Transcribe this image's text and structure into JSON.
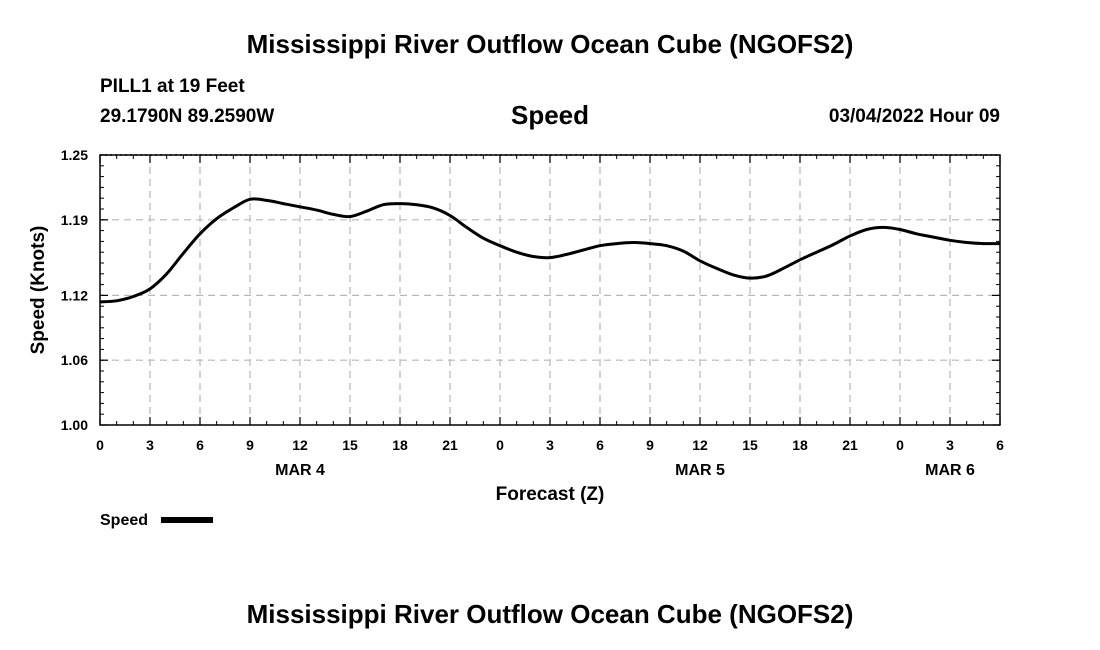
{
  "header": {
    "title": "Mississippi River Outflow Ocean Cube (NGOFS2)",
    "station": "PILL1 at 19 Feet",
    "coords": "29.1790N  89.2590W",
    "plot_title": "Speed",
    "timestamp": "03/04/2022 Hour 09"
  },
  "footer": {
    "title": "Mississippi River Outflow Ocean Cube (NGOFS2)"
  },
  "chart_data": {
    "type": "line",
    "title": "Speed",
    "xlabel": "Forecast (Z)",
    "ylabel": "Speed (Knots)",
    "xlim": [
      0,
      54
    ],
    "ylim": [
      1.0,
      1.25
    ],
    "yticks": [
      1.0,
      1.06,
      1.12,
      1.19,
      1.25
    ],
    "ytick_labels": [
      "1.00",
      "1.06",
      "1.12",
      "1.19",
      "1.25"
    ],
    "xticks": [
      0,
      3,
      6,
      9,
      12,
      15,
      18,
      21,
      24,
      27,
      30,
      33,
      36,
      39,
      42,
      45,
      48,
      51,
      54
    ],
    "xtick_labels": [
      "0",
      "3",
      "6",
      "9",
      "12",
      "15",
      "18",
      "21",
      "0",
      "3",
      "6",
      "9",
      "12",
      "15",
      "18",
      "21",
      "0",
      "3",
      "6"
    ],
    "date_labels": [
      {
        "label": "MAR 4",
        "at": 12
      },
      {
        "label": "MAR 5",
        "at": 36
      },
      {
        "label": "MAR 6",
        "at": 51
      }
    ],
    "grid": true,
    "legend": "bottom-left",
    "series": [
      {
        "name": "Speed",
        "color": "#000000",
        "x": [
          0,
          1,
          2,
          3,
          4,
          5,
          6,
          7,
          8,
          9,
          10,
          11,
          12,
          13,
          14,
          15,
          16,
          17,
          18,
          19,
          20,
          21,
          22,
          23,
          24,
          25,
          26,
          27,
          28,
          29,
          30,
          31,
          32,
          33,
          34,
          35,
          36,
          37,
          38,
          39,
          40,
          41,
          42,
          43,
          44,
          45,
          46,
          47,
          48,
          49,
          50,
          51,
          52,
          53,
          54
        ],
        "values": [
          1.114,
          1.115,
          1.119,
          1.126,
          1.14,
          1.159,
          1.177,
          1.191,
          1.201,
          1.209,
          1.208,
          1.205,
          1.202,
          1.199,
          1.195,
          1.193,
          1.198,
          1.204,
          1.205,
          1.204,
          1.201,
          1.194,
          1.183,
          1.173,
          1.166,
          1.16,
          1.156,
          1.155,
          1.158,
          1.162,
          1.166,
          1.168,
          1.169,
          1.168,
          1.166,
          1.161,
          1.152,
          1.145,
          1.139,
          1.136,
          1.138,
          1.145,
          1.153,
          1.16,
          1.167,
          1.175,
          1.181,
          1.183,
          1.181,
          1.177,
          1.174,
          1.171,
          1.169,
          1.168,
          1.168
        ]
      }
    ]
  }
}
